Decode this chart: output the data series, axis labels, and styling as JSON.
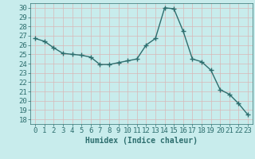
{
  "x": [
    0,
    1,
    2,
    3,
    4,
    5,
    6,
    7,
    8,
    9,
    10,
    11,
    12,
    13,
    14,
    15,
    16,
    17,
    18,
    19,
    20,
    21,
    22,
    23
  ],
  "y": [
    26.7,
    26.4,
    25.7,
    25.1,
    25.0,
    24.9,
    24.7,
    23.9,
    23.9,
    24.1,
    24.3,
    24.5,
    26.0,
    26.7,
    30.0,
    29.9,
    27.5,
    24.5,
    24.2,
    23.3,
    21.2,
    20.7,
    19.7,
    18.5
  ],
  "line_color": "#2d6e6e",
  "marker": "+",
  "marker_size": 4,
  "marker_lw": 1.0,
  "bg_color": "#c8ecec",
  "grid_color": "#d8b8b8",
  "tick_color": "#2d6e6e",
  "label_color": "#2d6e6e",
  "xlabel": "Humidex (Indice chaleur)",
  "ylim": [
    17.5,
    30.5
  ],
  "xlim": [
    -0.5,
    23.5
  ],
  "yticks": [
    18,
    19,
    20,
    21,
    22,
    23,
    24,
    25,
    26,
    27,
    28,
    29,
    30
  ],
  "xticks": [
    0,
    1,
    2,
    3,
    4,
    5,
    6,
    7,
    8,
    9,
    10,
    11,
    12,
    13,
    14,
    15,
    16,
    17,
    18,
    19,
    20,
    21,
    22,
    23
  ],
  "xlabel_fontsize": 7,
  "tick_fontsize": 6.5,
  "line_width": 1.0
}
